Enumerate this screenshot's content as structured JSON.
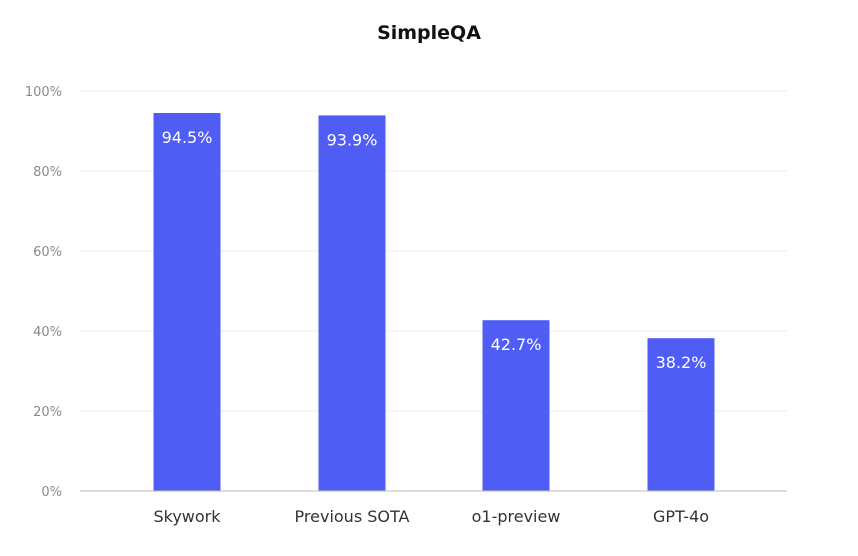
{
  "chart_data": {
    "type": "bar",
    "title": "SimpleQA",
    "xlabel": "",
    "ylabel": "",
    "categories": [
      "Skywork",
      "Previous SOTA",
      "o1-preview",
      "GPT-4o"
    ],
    "values": [
      94.5,
      93.9,
      42.7,
      38.2
    ],
    "data_labels": [
      "94.5%",
      "93.9%",
      "42.7%",
      "38.2%"
    ],
    "ylim": [
      0,
      100
    ],
    "yticks": [
      0,
      20,
      40,
      60,
      80,
      100
    ],
    "ytick_labels": [
      "0%",
      "20%",
      "40%",
      "60%",
      "80%",
      "100%"
    ],
    "grid": true,
    "bar_color": "#4f5df5",
    "legend": "none"
  }
}
